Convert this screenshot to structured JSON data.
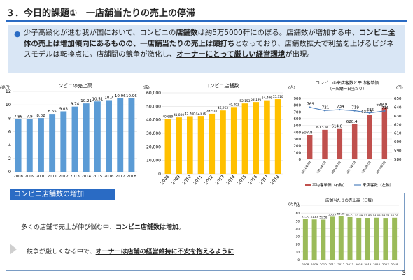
{
  "page": {
    "title": "３．今日的課題①　一店舗当たりの売上の停滞",
    "page_number": "3"
  },
  "intro": {
    "t1": "少子高齢化が進む我が国において、コンビニの",
    "t2": "店舗数",
    "t3": "は約5万5000軒にのぼる。店舗数が増加する中、",
    "t4": "コンビニ全体の売上は増加傾向にあるものの、一店舗当たりの売上は頭打ち",
    "t5": "となっており、店舗数拡大で利益を上げるビジネスモデルは転換点に。店舗間の競争が激化し、",
    "t6": "オーナーにとって厳しい経営環境",
    "t7": "が出現。"
  },
  "box": {
    "tag": "コンビニ店舗数の増加",
    "line1_a": "多くの店舗で売上が伸び悩む中、",
    "line1_b": "コンビニ店舗数は増加",
    "line1_c": "。",
    "line2_a": "競争が厳しくなる中で、",
    "line2_b": "オーナーは店舗の経営維持に不安を抱えるように"
  },
  "colors": {
    "blue_bar": "#5b9bd5",
    "yellow_bar": "#ffc000",
    "red_bar": "#c0504d",
    "green_bar": "#9bbb59",
    "line": "#4f81bd",
    "accent": "#2a6bc4"
  },
  "chart_data": [
    {
      "type": "bar",
      "title": "コンビニの売上高",
      "unit": "(兆円)",
      "categories": [
        "2008",
        "2009",
        "2010",
        "2011",
        "2012",
        "2013",
        "2014",
        "2015",
        "2016",
        "2017",
        "2018"
      ],
      "values": [
        7.86,
        7.9,
        8.02,
        8.65,
        9.03,
        9.74,
        10.21,
        10.51,
        10.7,
        10.96,
        10.96
      ],
      "ylim": [
        0,
        12
      ],
      "yticks": [
        0,
        2,
        4,
        6,
        8,
        10,
        12
      ]
    },
    {
      "type": "bar",
      "title": "コンビニ店舗数",
      "unit": "(店)",
      "categories": [
        "2008",
        "2009",
        "2010",
        "2011",
        "2012",
        "2013",
        "2014",
        "2015",
        "2016",
        "2017",
        "2018"
      ],
      "values": [
        40689,
        41800,
        42700,
        42876,
        44520,
        46963,
        49493,
        52153,
        53196,
        54496,
        55310
      ],
      "labels": [
        "40,689",
        "41,800",
        "42,700",
        "42,876",
        "44,520",
        "46,963",
        "49,493",
        "52,153",
        "53,196",
        "54,496",
        "55,310"
      ],
      "ylim": [
        0,
        60000
      ],
      "yticks": [
        "0",
        "10,000",
        "20,000",
        "30,000",
        "40,000",
        "50,000",
        "60,000"
      ]
    },
    {
      "type": "bar+line",
      "title": "コンビニの来店客数と平均客単価",
      "subtitle": "（一店舗一日当たり）",
      "unit_left": "(人)",
      "unit_right": "(円)",
      "categories": [
        "2014年2月",
        "2015年2月",
        "2016年2月",
        "2017年2月",
        "2018年2月",
        "2019年2月"
      ],
      "bar_series": {
        "name": "平均客単価（右軸）",
        "values": [
          607.8,
          613.9,
          614.8,
          620.4,
          631.3,
          639.9
        ],
        "ylim": [
          580,
          650
        ],
        "yticks": [
          580,
          590,
          600,
          610,
          620,
          630,
          640,
          650
        ]
      },
      "line_series": {
        "name": "来店客数（左軸）",
        "values": [
          769,
          721,
          734,
          719,
          685,
          716
        ],
        "ylim": [
          0,
          900
        ],
        "yticks": [
          0,
          100,
          200,
          300,
          400,
          500,
          600,
          700,
          800,
          900
        ]
      }
    },
    {
      "type": "bar",
      "title": "一店舗当たりの売上高（日販）",
      "unit": "(万円)",
      "categories": [
        "2008",
        "2009",
        "2010",
        "2011",
        "2012",
        "2013",
        "2014",
        "2015",
        "2016",
        "2017",
        "2018"
      ],
      "values": [
        52.5,
        51.83,
        51.56,
        55.25,
        55.95,
        54.77,
        53.89,
        53.83,
        54.05,
        53.78,
        54.01
      ],
      "labels": [
        "52.50",
        "51.83",
        "51.56",
        "55.25",
        "55.95",
        "54.77",
        "53.89",
        "53.83",
        "54.05",
        "53.78",
        "54.01"
      ],
      "ylim": [
        0,
        70
      ],
      "yticks": [
        0,
        10,
        20,
        30,
        40,
        50,
        60,
        70
      ]
    }
  ]
}
